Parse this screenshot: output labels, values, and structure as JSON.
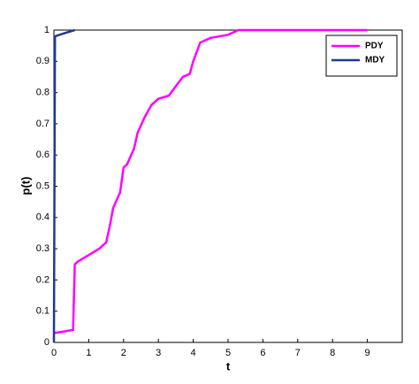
{
  "chart_data": {
    "type": "line",
    "xlabel": "t",
    "ylabel": "p(t)",
    "xlim": [
      0,
      10
    ],
    "xticks": [
      0,
      1,
      2,
      3,
      4,
      5,
      6,
      7,
      8,
      9
    ],
    "ylim": [
      0,
      1
    ],
    "yticks": [
      0,
      0.1,
      0.2,
      0.3,
      0.4,
      0.5,
      0.6,
      0.7,
      0.8,
      0.9,
      1
    ],
    "legend": "upper-right",
    "series": [
      {
        "name": "PDY",
        "color": "#ff00ff",
        "x": [
          0,
          0.3,
          0.55,
          0.6,
          0.7,
          1,
          1.3,
          1.5,
          1.6,
          1.7,
          1.9,
          2.0,
          2.1,
          2.3,
          2.4,
          2.6,
          2.8,
          3.0,
          3.3,
          3.5,
          3.7,
          3.9,
          4.0,
          4.2,
          4.5,
          5.0,
          5.3,
          9
        ],
        "values": [
          0.03,
          0.035,
          0.04,
          0.25,
          0.26,
          0.28,
          0.3,
          0.32,
          0.37,
          0.43,
          0.48,
          0.56,
          0.57,
          0.62,
          0.67,
          0.72,
          0.76,
          0.78,
          0.79,
          0.82,
          0.85,
          0.86,
          0.9,
          0.96,
          0.975,
          0.985,
          1.0,
          1.0
        ]
      },
      {
        "name": "MDY",
        "color": "#1f3a93",
        "x": [
          0,
          0.03,
          0.3,
          0.6
        ],
        "values": [
          0,
          0.98,
          0.99,
          1.0
        ]
      }
    ]
  }
}
